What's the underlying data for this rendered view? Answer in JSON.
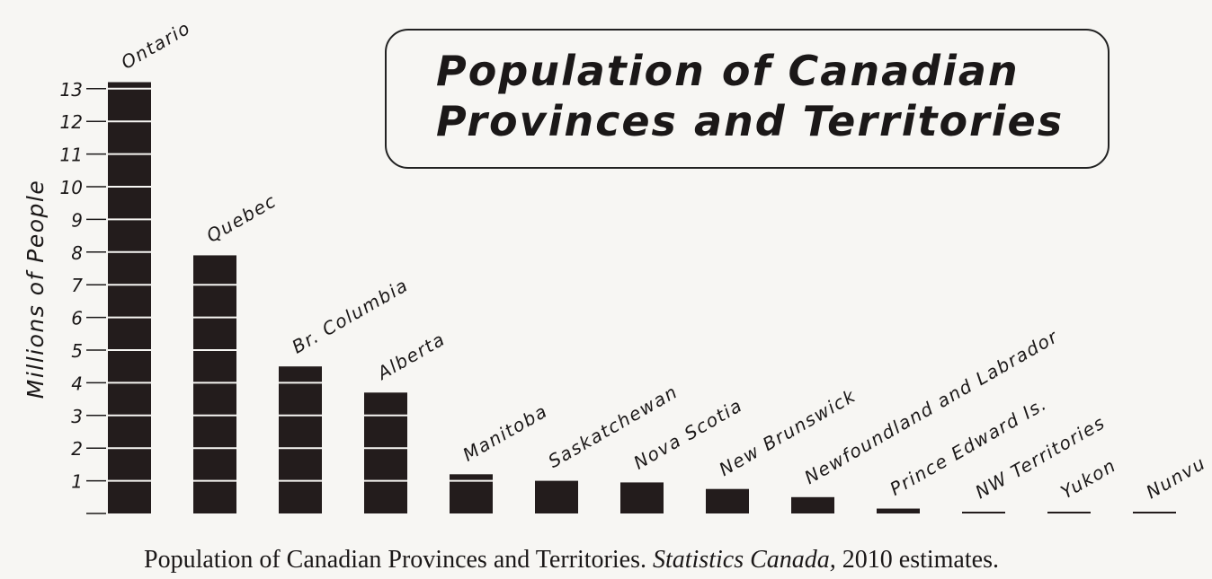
{
  "chart_data": {
    "type": "bar",
    "title": "Population of Canadian Provinces and Territories",
    "title_lines": [
      "Population of Canadian",
      "Provinces and Territories"
    ],
    "ylabel": "Millions of People",
    "xlabel": "",
    "ylim": [
      0,
      13
    ],
    "yticks": [
      1,
      2,
      3,
      4,
      5,
      6,
      7,
      8,
      9,
      10,
      11,
      12,
      13
    ],
    "categories": [
      "Ontario",
      "Quebec",
      "Br. Columbia",
      "Alberta",
      "Manitoba",
      "Saskatchewan",
      "Nova Scotia",
      "New Brunswick",
      "Newfoundland and Labrador",
      "Prince Edward Is.",
      "NW Territories",
      "Yukon",
      "Nunvu"
    ],
    "values": [
      13.2,
      7.9,
      4.5,
      3.7,
      1.2,
      1.0,
      0.95,
      0.75,
      0.5,
      0.15,
      0.04,
      0.03,
      0.03
    ],
    "grid": false,
    "colors": {
      "bar": "#231c1c",
      "text": "#1b1818"
    }
  },
  "source": {
    "text_before": "Population of Canadian Provinces and Territories. ",
    "italic": "Statistics Canada,",
    "text_after": " 2010 estimates."
  }
}
